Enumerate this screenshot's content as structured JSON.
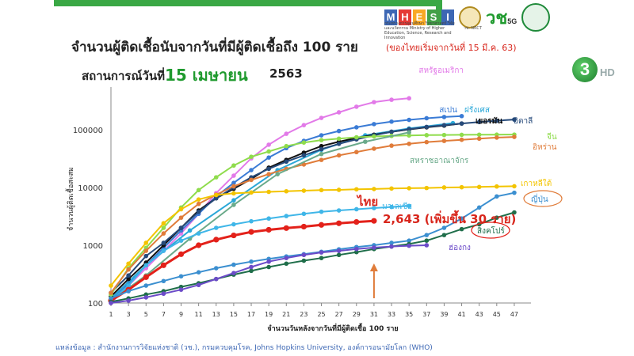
{
  "header": {
    "title": "จำนวนผู้ติดเชื้อนับจากวันที่มีผู้ติดเชื้อถึง 100 ราย",
    "note": "(ของไทยเริ่มจากวันที่ 15 มี.ค. 63)",
    "subtitle_label": "สถานการณ์วันที่",
    "subtitle_date": "15 เมษายน",
    "subtitle_year": "2563"
  },
  "logos": {
    "mhesi_letters": [
      "M",
      "H",
      "E",
      "S",
      "I"
    ],
    "mhesi_colors": [
      "#3d67b4",
      "#e53935",
      "#f9a825",
      "#43a047",
      "#3d67b4"
    ],
    "mhesi_caption": "กระทรวงการอุดมศึกษา วิทยาศาสตร์ วิจัยและนวัตกรรม Ministry of Higher Education, Science, Research and Innovation",
    "nrct": "วช. NRCT",
    "v5g": "วช",
    "v5g_suffix": "5G",
    "channel": "3",
    "hd": "HD"
  },
  "source": "แหล่งข้อมูล : สำนักงานการวิจัยแห่งชาติ (วช.), กรมควบคุมโรค, Johns Hopkins University, องค์การอนามัยโลก (WHO)",
  "chart_data": {
    "type": "line",
    "yscale": "log",
    "ylim": [
      100,
      400000
    ],
    "xlim": [
      1,
      48
    ],
    "xlabel": "จำนวนวันหลังจากวันที่มีผู้ติดเชื้อ 100 ราย",
    "ylabel": "จำนวนผู้ติดเชื้อสะสม",
    "yticks": [
      100,
      1000,
      10000,
      100000
    ],
    "xticks": [
      1,
      3,
      5,
      7,
      9,
      11,
      13,
      15,
      17,
      19,
      21,
      23,
      25,
      27,
      29,
      31,
      33,
      35,
      37,
      39,
      41,
      43,
      45,
      47
    ],
    "grid": false,
    "thai_label": "ไทย",
    "thai_annotation": "2,643 (เพิ่มขึ้น 30 ราย)",
    "marker_day": 31,
    "series": [
      {
        "name": "สหรัฐอเมริกา",
        "color": "#e27ae8",
        "x": [
          1,
          3,
          5,
          7,
          9,
          11,
          13,
          15,
          17,
          19,
          21,
          23,
          25,
          27,
          29,
          31,
          33,
          35
        ],
        "y": [
          100,
          200,
          400,
          800,
          1600,
          3500,
          8000,
          16000,
          32000,
          55000,
          85000,
          120000,
          160000,
          200000,
          250000,
          300000,
          330000,
          350000
        ]
      },
      {
        "name": "สเปน",
        "color": "#3a7bd5",
        "x": [
          1,
          3,
          5,
          7,
          9,
          11,
          13,
          15,
          17,
          19,
          21,
          23,
          25,
          27,
          29,
          31,
          33,
          35,
          37,
          39,
          41
        ],
        "y": [
          110,
          220,
          450,
          900,
          1800,
          3500,
          7000,
          12000,
          20000,
          33000,
          48000,
          64000,
          80000,
          95000,
          110000,
          125000,
          138000,
          148000,
          158000,
          166000,
          172000
        ]
      },
      {
        "name": "ฝรั่งเศส",
        "color": "#2ba8d8",
        "x": [
          1,
          5,
          10,
          15,
          20,
          25,
          30,
          35,
          40
        ],
        "y": [
          120,
          450,
          1800,
          6000,
          20000,
          45000,
          80000,
          105000,
          130000
        ]
      },
      {
        "name": "เยอรมัน",
        "color": "#111111",
        "x": [
          1,
          3,
          5,
          7,
          9,
          11,
          13,
          15,
          17,
          19,
          21,
          23,
          25,
          27,
          29,
          31,
          33,
          35,
          37,
          39,
          41
        ],
        "y": [
          130,
          260,
          500,
          1000,
          2000,
          4000,
          6500,
          9500,
          14000,
          22000,
          30000,
          40000,
          52000,
          62000,
          72000,
          82000,
          92000,
          101000,
          110000,
          118000,
          128000
        ]
      },
      {
        "name": "อิตาลี",
        "color": "#264a7a",
        "x": [
          1,
          3,
          5,
          7,
          9,
          11,
          13,
          15,
          17,
          19,
          21,
          23,
          25,
          27,
          29,
          31,
          33,
          35,
          37,
          39,
          41,
          43,
          45,
          47
        ],
        "y": [
          150,
          300,
          650,
          1100,
          2000,
          3800,
          6500,
          10000,
          15000,
          21000,
          28000,
          36000,
          46000,
          57000,
          68000,
          80000,
          92000,
          102000,
          112000,
          120000,
          128000,
          136000,
          143000,
          150000
        ]
      },
      {
        "name": "จีน",
        "color": "#8fdc4c",
        "x": [
          1,
          3,
          5,
          7,
          9,
          11,
          13,
          15,
          17,
          19,
          21,
          23,
          25,
          27,
          29,
          31,
          33,
          35,
          37,
          39,
          41,
          43,
          45,
          47
        ],
        "y": [
          140,
          400,
          900,
          2000,
          4500,
          9000,
          15000,
          24000,
          34000,
          42000,
          52000,
          60000,
          66000,
          70000,
          74000,
          76500,
          78000,
          79500,
          80500,
          81000,
          81500,
          82000,
          82200,
          82300
        ]
      },
      {
        "name": "อิหร่าน",
        "color": "#e07c3a",
        "x": [
          1,
          3,
          5,
          7,
          9,
          11,
          13,
          15,
          17,
          19,
          21,
          23,
          25,
          27,
          29,
          31,
          33,
          35,
          37,
          39,
          41,
          43,
          45,
          47
        ],
        "y": [
          150,
          380,
          800,
          1600,
          3000,
          5200,
          7500,
          10500,
          13500,
          17000,
          21000,
          25000,
          30000,
          36000,
          41000,
          47000,
          53000,
          57000,
          61000,
          64000,
          67000,
          70000,
          73000,
          75000
        ]
      },
      {
        "name": "สหราชอาณาจักร",
        "color": "#6aaa8a",
        "x": [
          1,
          5,
          10,
          15,
          20,
          25,
          30,
          35
        ],
        "y": [
          110,
          300,
          1300,
          5000,
          17000,
          38000,
          62000,
          90000
        ]
      },
      {
        "name": "เกาหลีใต้",
        "color": "#f3c400",
        "x": [
          1,
          3,
          5,
          7,
          9,
          11,
          13,
          15,
          17,
          19,
          21,
          23,
          25,
          27,
          29,
          31,
          33,
          35,
          37,
          39,
          41,
          43,
          45,
          47
        ],
        "y": [
          200,
          480,
          1100,
          2400,
          4200,
          6200,
          7400,
          7900,
          8200,
          8400,
          8600,
          8800,
          9000,
          9100,
          9300,
          9400,
          9600,
          9700,
          9800,
          10000,
          10100,
          10200,
          10400,
          10500
        ]
      },
      {
        "name": "มาเลเซีย",
        "color": "#3fb6e8",
        "x": [
          1,
          3,
          5,
          7,
          9,
          11,
          13,
          15,
          17,
          19,
          21,
          23,
          25,
          27,
          29,
          31,
          33,
          35
        ],
        "y": [
          110,
          200,
          450,
          800,
          1200,
          1600,
          2000,
          2300,
          2600,
          2900,
          3200,
          3500,
          3800,
          4000,
          4200,
          4400,
          4600,
          4800
        ]
      },
      {
        "name": "ไทย",
        "color": "#e3211a",
        "x": [
          1,
          3,
          5,
          7,
          9,
          11,
          13,
          15,
          17,
          19,
          21,
          23,
          25,
          27,
          29,
          31
        ],
        "y": [
          110,
          170,
          280,
          450,
          700,
          1000,
          1250,
          1480,
          1700,
          1850,
          1980,
          2100,
          2250,
          2400,
          2530,
          2643
        ]
      },
      {
        "name": "ญี่ปุ่น",
        "color": "#3b8fd0",
        "x": [
          1,
          3,
          5,
          7,
          9,
          11,
          13,
          15,
          17,
          19,
          21,
          23,
          25,
          27,
          29,
          31,
          33,
          35,
          37,
          39,
          41,
          43,
          45,
          47
        ],
        "y": [
          120,
          160,
          200,
          240,
          290,
          340,
          400,
          460,
          520,
          580,
          640,
          700,
          770,
          850,
          930,
          1000,
          1100,
          1200,
          1500,
          2000,
          2900,
          4500,
          7000,
          8100
        ]
      },
      {
        "name": "สิงคโปร์",
        "color": "#1f6e4a",
        "x": [
          1,
          3,
          5,
          7,
          9,
          11,
          13,
          15,
          17,
          19,
          21,
          23,
          25,
          27,
          29,
          31,
          33,
          35,
          37,
          39,
          41,
          43,
          45,
          47
        ],
        "y": [
          105,
          120,
          140,
          160,
          190,
          220,
          260,
          310,
          360,
          420,
          480,
          540,
          600,
          680,
          760,
          860,
          950,
          1050,
          1200,
          1500,
          1900,
          2300,
          3000,
          3700
        ]
      },
      {
        "name": "ฮ่องกง",
        "color": "#6b4bc8",
        "x": [
          1,
          3,
          5,
          7,
          9,
          11,
          13,
          15,
          17,
          19,
          21,
          23,
          25,
          27,
          29,
          31,
          33,
          35,
          37
        ],
        "y": [
          100,
          110,
          125,
          145,
          170,
          205,
          260,
          330,
          420,
          520,
          600,
          680,
          750,
          800,
          860,
          910,
          950,
          980,
          1000
        ]
      }
    ]
  }
}
